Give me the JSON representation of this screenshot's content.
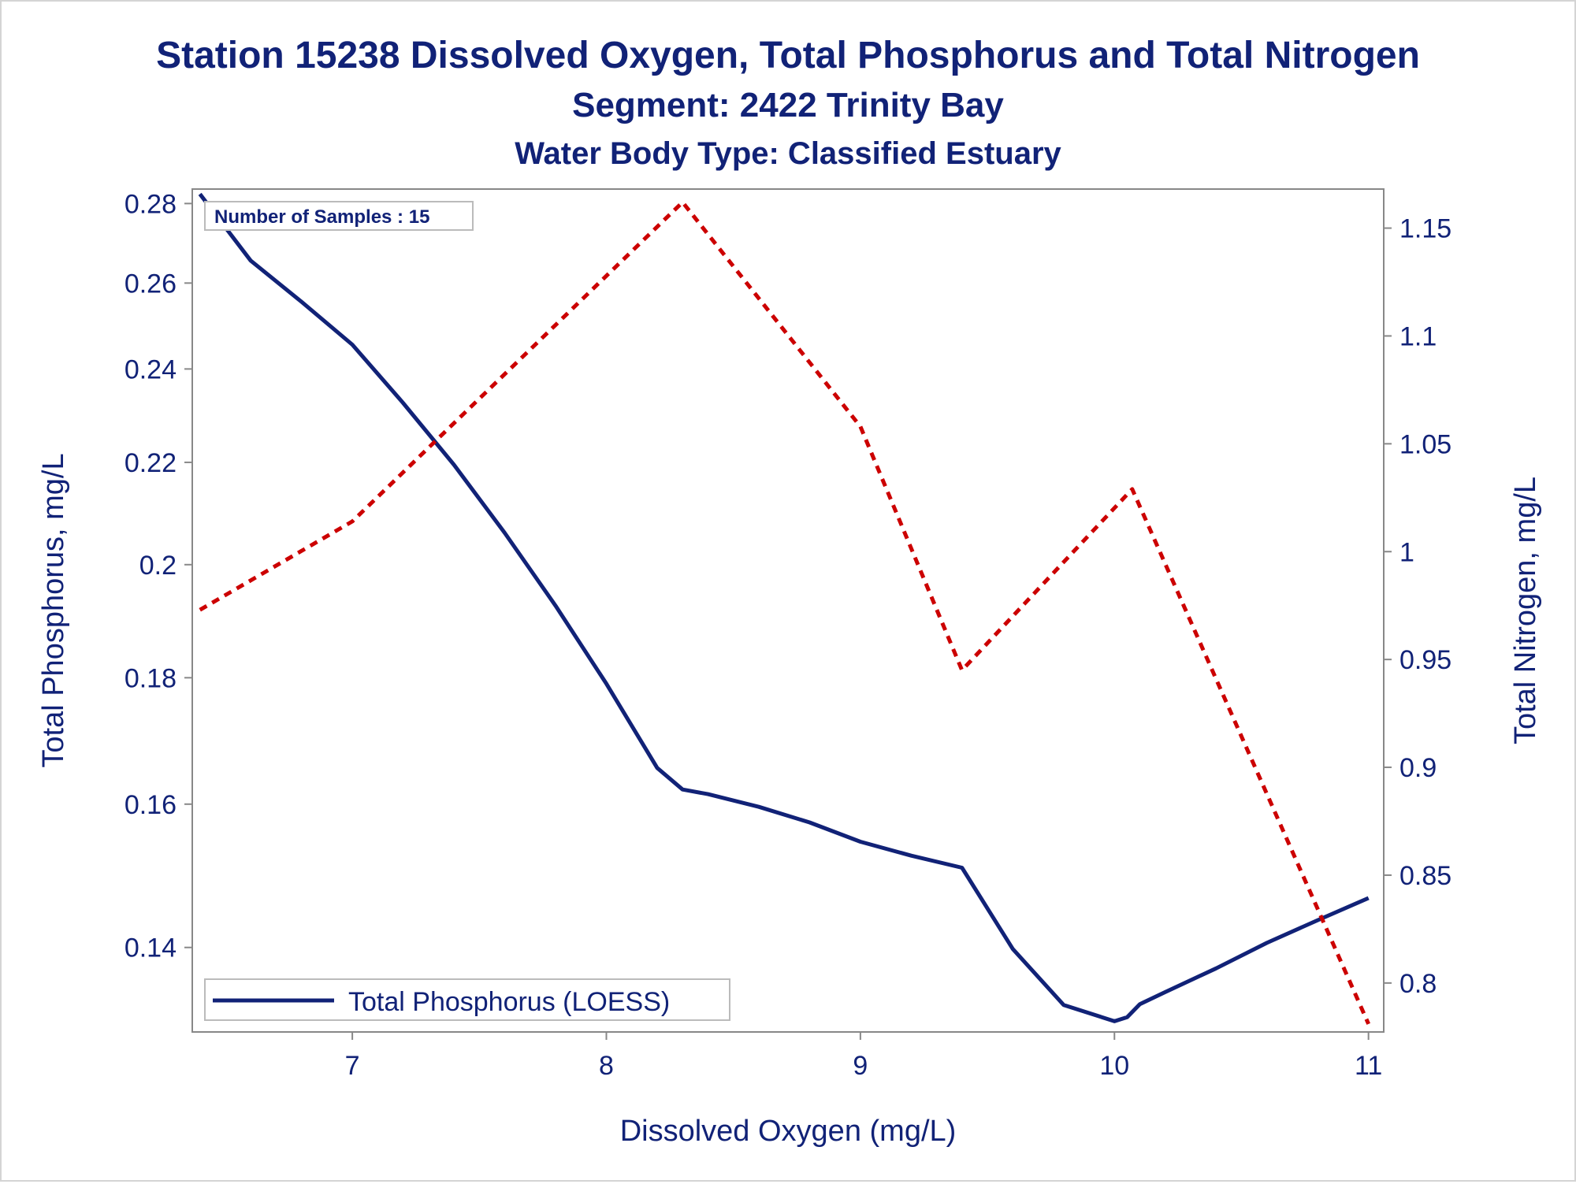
{
  "chart_data": {
    "type": "line",
    "title": "Station 15238  Dissolved Oxygen, Total Phosphorus and Total Nitrogen",
    "subtitle": "Segment: 2422  Trinity Bay",
    "subtitle2": "Water Body Type: Classified Estuary",
    "xlabel": "Dissolved Oxygen (mg/L)",
    "ylabel_left": "Total Phosphorus, mg/L",
    "ylabel_right": "Total Nitrogen, mg/L",
    "annotation": "Number of Samples : 15",
    "xlim": [
      6.37,
      11.06
    ],
    "ylim_left": [
      0.1294,
      0.2838
    ],
    "ylim_right": [
      0.7773,
      1.1681
    ],
    "y_left_scale": "log",
    "y_right_scale": "linear",
    "xticks": [
      7,
      8,
      9,
      10,
      11
    ],
    "xtick_labels": [
      "7",
      "8",
      "9",
      "10",
      "11"
    ],
    "yticks_left": [
      0.14,
      0.16,
      0.18,
      0.2,
      0.22,
      0.24,
      0.26,
      0.28
    ],
    "ytick_labels_left": [
      "0.14",
      "0.16",
      "0.18",
      "0.2",
      "0.22",
      "0.24",
      "0.26",
      "0.28"
    ],
    "yticks_right": [
      0.8,
      0.85,
      0.9,
      0.95,
      1.0,
      1.05,
      1.1,
      1.15
    ],
    "ytick_labels_right": [
      "0.8",
      "0.85",
      "0.9",
      "0.95",
      "1",
      "1.05",
      "1.1",
      "1.15"
    ],
    "grid": false,
    "legend_position": "bottom-left",
    "series": [
      {
        "name": "Total Phosphorus (LOESS)",
        "axis": "left",
        "color": "#112277",
        "style": "solid",
        "x": [
          6.4,
          6.6,
          6.8,
          7.0,
          7.2,
          7.4,
          7.6,
          7.8,
          8.0,
          8.2,
          8.3,
          8.4,
          8.6,
          8.8,
          9.0,
          9.2,
          9.4,
          9.6,
          9.8,
          10.0,
          10.05,
          10.1,
          10.2,
          10.4,
          10.6,
          10.8,
          11.0
        ],
        "y": [
          0.2825,
          0.2655,
          0.2555,
          0.2455,
          0.2325,
          0.2195,
          0.206,
          0.1925,
          0.179,
          0.1655,
          0.1622,
          0.1615,
          0.1596,
          0.1573,
          0.1545,
          0.1525,
          0.1508,
          0.1398,
          0.1327,
          0.1307,
          0.1312,
          0.1328,
          0.1343,
          0.1373,
          0.1406,
          0.1436,
          0.1466
        ]
      },
      {
        "name": "",
        "axis": "right",
        "color": "#cc0000",
        "style": "dashed",
        "x": [
          6.4,
          7.0,
          8.3,
          9.0,
          9.4,
          10.07,
          11.0
        ],
        "y": [
          0.973,
          1.014,
          1.162,
          1.058,
          0.945,
          1.029,
          0.781
        ]
      }
    ]
  }
}
